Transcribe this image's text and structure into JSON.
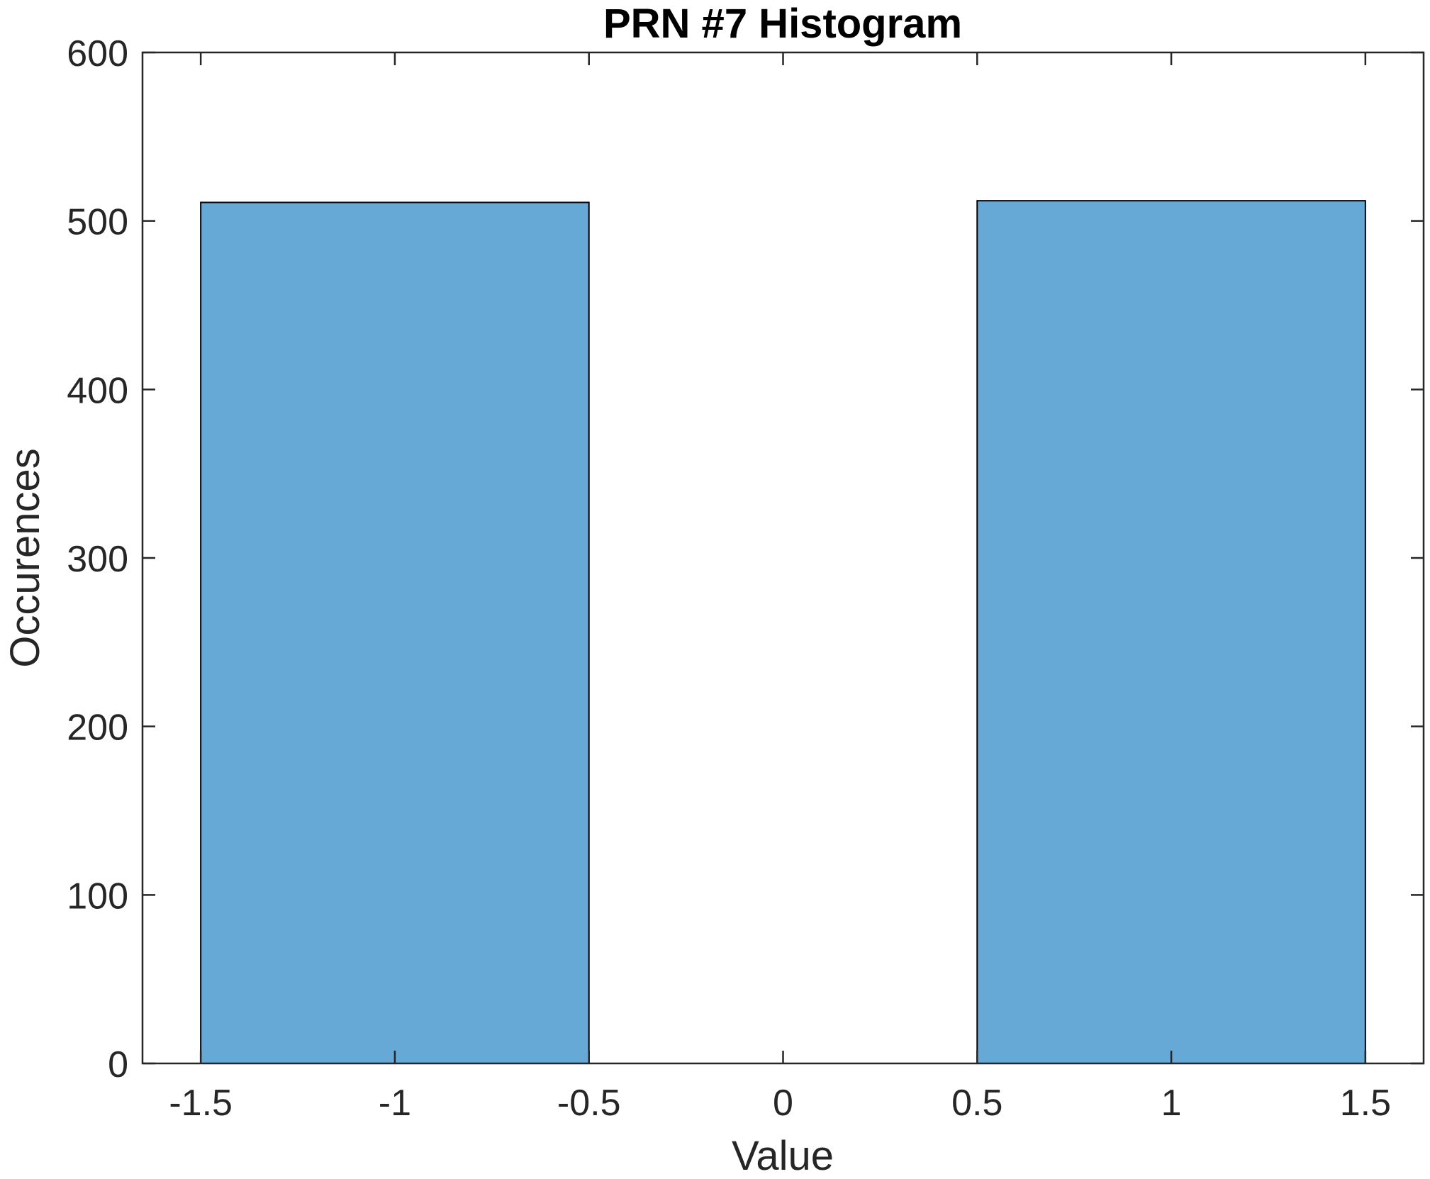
{
  "chart_data": {
    "type": "bar",
    "title": "PRN #7 Histogram",
    "xlabel": "Value",
    "ylabel": "Occurences",
    "xlim": [
      -1.65,
      1.65
    ],
    "ylim": [
      0,
      600
    ],
    "xticks": [
      -1.5,
      -1,
      -0.5,
      0,
      0.5,
      1,
      1.5
    ],
    "xtick_labels": [
      "-1.5",
      "-1",
      "-0.5",
      "0",
      "0.5",
      "1",
      "1.5"
    ],
    "yticks": [
      0,
      100,
      200,
      300,
      400,
      500,
      600
    ],
    "ytick_labels": [
      "0",
      "100",
      "200",
      "300",
      "400",
      "500",
      "600"
    ],
    "bin_edges": [
      -1.5,
      -0.5,
      0.5,
      1.5
    ],
    "values": [
      511,
      0,
      512
    ],
    "grid": false,
    "legend": "none",
    "bar_color": "#67a9d6",
    "edge_color": "#000000",
    "axis_color": "#262626"
  }
}
